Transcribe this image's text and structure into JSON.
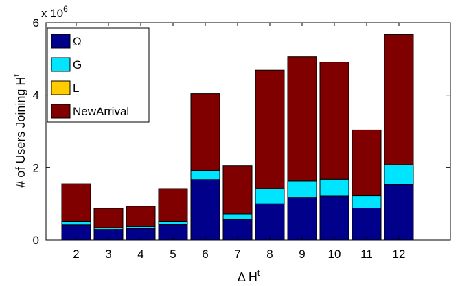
{
  "chart_data": {
    "type": "bar",
    "stacked": true,
    "categories": [
      "2",
      "3",
      "4",
      "5",
      "6",
      "7",
      "8",
      "9",
      "10",
      "11",
      "12"
    ],
    "series": [
      {
        "name": "Ω",
        "color": "#00008B",
        "values": [
          0.42,
          0.29,
          0.32,
          0.43,
          1.67,
          0.56,
          1.0,
          1.18,
          1.21,
          0.88,
          1.53
        ]
      },
      {
        "name": "G",
        "color": "#00E5FF",
        "values": [
          0.1,
          0.05,
          0.05,
          0.09,
          0.25,
          0.16,
          0.42,
          0.45,
          0.47,
          0.34,
          0.55
        ]
      },
      {
        "name": "L",
        "color": "#FFCC00",
        "values": [
          0,
          0,
          0,
          0,
          0,
          0,
          0,
          0,
          0,
          0,
          0
        ]
      },
      {
        "name": "NewArrival",
        "color": "#800000",
        "values": [
          1.03,
          0.53,
          0.56,
          0.9,
          2.12,
          1.33,
          3.27,
          3.43,
          3.23,
          1.82,
          3.59
        ]
      }
    ],
    "xlabel": "Δ H",
    "xlabel_sup": "t",
    "ylabel": "# of Users Joining H",
    "ylabel_sup": "t",
    "ylim": [
      0,
      6
    ],
    "yticks": [
      "0",
      "2",
      "4",
      "6"
    ],
    "y_multiplier": "x 10",
    "y_multiplier_exp": "6",
    "grid": false,
    "legend_position": "top-left"
  }
}
